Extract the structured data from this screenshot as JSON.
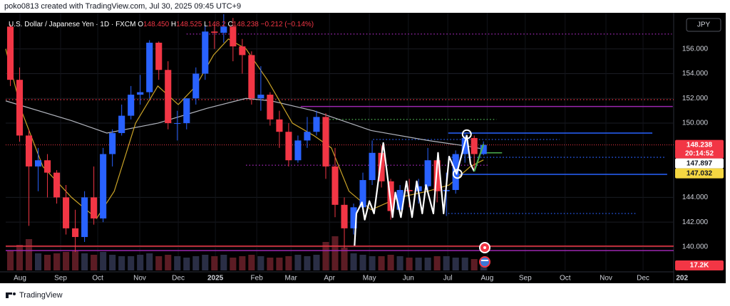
{
  "chart_data": {
    "type": "candlestick",
    "caption": "poko0813 created with TradingView.com, Jul 30, 2025 09:45 UTC+9",
    "legend": {
      "symbol": "U.S. Dollar / Japanese Yen · 1D · FXCM",
      "items": [
        [
          "O",
          "148.450"
        ],
        [
          "H",
          "148.525"
        ],
        [
          "L",
          "148.2"
        ],
        [
          "C",
          "148.238"
        ]
      ],
      "change": "−0.212 (−0.14%)"
    },
    "currency": "JPY",
    "countdown": "20:14:52",
    "footer": "TradingView",
    "up_color": "#2962ff",
    "down_color": "#f23645",
    "x": [
      0,
      1,
      2,
      3,
      4,
      5,
      6,
      7,
      8,
      9,
      10,
      11,
      12,
      13,
      14,
      15,
      16,
      17,
      18,
      19,
      20,
      21,
      22,
      23,
      24,
      25,
      26,
      27,
      28,
      29,
      30,
      31,
      32,
      33,
      34,
      35,
      36,
      37,
      38,
      39,
      40,
      41,
      42,
      43,
      44,
      45,
      46,
      47,
      48,
      49,
      50,
      51
    ],
    "open": [
      157.8,
      153.5,
      149.0,
      146.5,
      147.0,
      146.0,
      144.0,
      141.5,
      140.8,
      144.0,
      142.3,
      147.5,
      149.2,
      150.6,
      152.3,
      152.5,
      156.5,
      154.3,
      150.0,
      150.0,
      152.0,
      154.0,
      157.4,
      157.3,
      157.8,
      156.2,
      155.5,
      152.0,
      152.3,
      150.3,
      149.3,
      147.0,
      148.6,
      149.3,
      150.5,
      146.5,
      143.4,
      141.5,
      143.2,
      145.4,
      147.6,
      145.3,
      143.0,
      144.6,
      144.5,
      144.9,
      147.0,
      144.5,
      144.6,
      147.5,
      148.8,
      147.5
    ],
    "high": [
      158.0,
      154.5,
      149.5,
      148.0,
      147.5,
      146.2,
      145.0,
      143.0,
      144.5,
      146.5,
      148.0,
      149.5,
      151.5,
      153.0,
      153.9,
      156.7,
      156.6,
      155.0,
      151.0,
      152.0,
      154.5,
      157.9,
      158.0,
      158.8,
      158.5,
      156.8,
      155.8,
      154.6,
      152.5,
      151.0,
      150.0,
      149.0,
      150.5,
      151.0,
      150.8,
      148.0,
      144.0,
      143.5,
      146.0,
      148.6,
      148.2,
      145.5,
      145.0,
      145.5,
      145.5,
      148.0,
      147.0,
      146.0,
      147.8,
      149.2,
      149.0,
      148.525
    ],
    "low": [
      153.0,
      148.5,
      141.7,
      144.5,
      144.0,
      143.5,
      141.0,
      139.6,
      140.4,
      141.8,
      142.0,
      146.5,
      149.0,
      150.3,
      151.5,
      152.0,
      153.5,
      149.5,
      148.6,
      149.5,
      151.5,
      153.5,
      156.0,
      156.5,
      155.0,
      154.0,
      151.5,
      151.0,
      149.8,
      148.0,
      146.5,
      146.8,
      148.0,
      149.0,
      145.5,
      142.4,
      139.9,
      141.0,
      142.8,
      145.0,
      144.8,
      142.2,
      142.8,
      143.2,
      143.5,
      144.6,
      143.6,
      142.5,
      144.3,
      146.8,
      146.3,
      147.4
    ],
    "close": [
      153.5,
      149.0,
      146.5,
      147.0,
      146.0,
      144.0,
      141.5,
      140.8,
      144.0,
      142.3,
      147.5,
      149.2,
      150.6,
      152.3,
      152.5,
      156.5,
      154.3,
      150.0,
      150.0,
      152.0,
      154.0,
      157.4,
      157.3,
      157.8,
      156.2,
      155.5,
      152.0,
      152.3,
      150.3,
      149.3,
      147.0,
      148.6,
      149.3,
      150.5,
      146.5,
      143.4,
      141.5,
      143.2,
      145.4,
      147.6,
      145.3,
      142.9,
      144.6,
      144.5,
      144.9,
      147.0,
      144.5,
      144.6,
      147.5,
      148.8,
      147.5,
      148.238
    ],
    "xlim": [
      -0.5,
      71.5
    ],
    "ylim": [
      138.1,
      158.8
    ],
    "xticks": [
      {
        "value": 1.04,
        "label": "Aug"
      },
      {
        "value": 5.42,
        "label": "Sep"
      },
      {
        "value": 9.42,
        "label": "Oct"
      },
      {
        "value": 13.95,
        "label": "Nov"
      },
      {
        "value": 18.1,
        "label": "Dec"
      },
      {
        "value": 22.1,
        "label": "2025"
      },
      {
        "value": 26.56,
        "label": "Feb"
      },
      {
        "value": 30.25,
        "label": "Mar"
      },
      {
        "value": 34.4,
        "label": "Apr"
      },
      {
        "value": 38.7,
        "label": "May"
      },
      {
        "value": 42.9,
        "label": "Jun"
      },
      {
        "value": 47.15,
        "label": "Jul"
      },
      {
        "value": 51.4,
        "label": "Aug"
      },
      {
        "value": 55.5,
        "label": "Sep"
      },
      {
        "value": 59.8,
        "label": "Oct"
      },
      {
        "value": 64.2,
        "label": "Nov"
      },
      {
        "value": 68.2,
        "label": "Dec"
      },
      {
        "value": 72.4,
        "label": "202"
      }
    ],
    "yticks": [
      {
        "value": 140,
        "label": "140.000"
      },
      {
        "value": 142,
        "label": "142.000"
      },
      {
        "value": 144,
        "label": "144.000"
      },
      {
        "value": 150,
        "label": "150.000"
      },
      {
        "value": 152,
        "label": "152.000"
      },
      {
        "value": 154,
        "label": "154.000"
      },
      {
        "value": 156,
        "label": "156.000"
      }
    ],
    "grid": true,
    "moving_averages": [
      {
        "color": "#b2b5be",
        "label_bg": "#ffffff",
        "x": [
          -0.5,
          6.6,
          10.4,
          15.9,
          21.2,
          25.4,
          28.1,
          32.7,
          38.9,
          45.0,
          49.6,
          51.0
        ],
        "values": [
          151.8,
          150.2,
          149.2,
          150.0,
          151.2,
          152.0,
          151.8,
          151.0,
          149.4,
          148.6,
          148.1,
          147.897
        ]
      },
      {
        "color": "#c9a227",
        "label_bg": "#f5d742",
        "x": [
          -0.5,
          1.2,
          3.5,
          6.6,
          9.3,
          11.2,
          13.5,
          15.9,
          18.1,
          20.0,
          21.9,
          23.5,
          25.4,
          27.7,
          30.4,
          32.7,
          34.6,
          36.5,
          38.9,
          41.9,
          45.0,
          47.3,
          49.6,
          51.0
        ],
        "values": [
          156.0,
          151.0,
          146.5,
          144.0,
          142.3,
          144.5,
          150.0,
          153.0,
          151.5,
          153.0,
          155.5,
          156.8,
          156.0,
          153.5,
          150.0,
          149.0,
          148.0,
          144.5,
          143.0,
          144.0,
          144.5,
          145.0,
          146.5,
          147.032
        ]
      }
    ],
    "volume": {
      "up_color": "#2a2e45",
      "down_color": "#5c1c24",
      "vlim": [
        0,
        200
      ],
      "values": [
        70,
        90,
        110,
        60,
        55,
        60,
        65,
        70,
        60,
        55,
        65,
        55,
        50,
        50,
        55,
        60,
        50,
        55,
        50,
        45,
        50,
        55,
        50,
        55,
        45,
        50,
        55,
        50,
        45,
        45,
        50,
        55,
        50,
        55,
        100,
        120,
        80,
        60,
        55,
        50,
        50,
        55,
        50,
        45,
        45,
        45,
        50,
        50,
        45,
        45,
        40,
        17.2
      ],
      "last_label": "17.2K",
      "label_bg": "#f23645"
    },
    "levels": [
      {
        "value": 151.9,
        "from": -0.5,
        "to": 71.5,
        "color": "#f23645",
        "style": "dotted"
      },
      {
        "value": 157.2,
        "from": 19.0,
        "to": 71.3,
        "color": "#9c27b0",
        "style": "dotted"
      },
      {
        "value": 151.35,
        "from": 31.3,
        "to": 71.4,
        "color": "#9c27b0",
        "style": "solid"
      },
      {
        "value": 150.3,
        "from": 34.4,
        "to": 52.4,
        "color": "#4caf50",
        "style": "dotted"
      },
      {
        "value": 148.68,
        "from": 39.1,
        "to": 59.2,
        "color": "#2962ff",
        "style": "dotted"
      },
      {
        "value": 149.2,
        "from": 47.2,
        "to": 69.2,
        "color": "#2962ff",
        "style": "solid"
      },
      {
        "value": 147.24,
        "from": 47.2,
        "to": 70.5,
        "color": "#2962ff",
        "style": "dotted"
      },
      {
        "value": 146.6,
        "from": 25.4,
        "to": 51.5,
        "color": "#9c27b0",
        "style": "dotted"
      },
      {
        "value": 145.86,
        "from": 48.3,
        "to": 70.8,
        "color": "#2962ff",
        "style": "solid"
      },
      {
        "value": 142.7,
        "from": 47.2,
        "to": 67.5,
        "color": "#2962ff",
        "style": "dotted"
      },
      {
        "value": 140.06,
        "from": -0.5,
        "to": 71.5,
        "color": "#f23645",
        "style": "solid"
      },
      {
        "value": 139.7,
        "from": -0.5,
        "to": 71.5,
        "color": "#9c27b0",
        "style": "solid"
      },
      {
        "value": 147.6,
        "from": 51.0,
        "to": 53.0,
        "color": "#4caf50",
        "style": "solid"
      }
    ],
    "drawings": [
      {
        "color": "#ffffff",
        "x": [
          37.1,
          37.3,
          37.9,
          38.2,
          38.7,
          39.2,
          40.2,
          41.2,
          41.5,
          42.1,
          42.7,
          43.3,
          43.8,
          44.4,
          44.8,
          45.6,
          46.1,
          46.7,
          47.3,
          48.1,
          48.7,
          49.2,
          49.6,
          50.0
        ],
        "values": [
          140.1,
          142.7,
          143.6,
          142.2,
          143.7,
          142.7,
          148.4,
          142.4,
          144.4,
          142.4,
          145.3,
          142.4,
          145.3,
          142.7,
          145.0,
          142.7,
          147.6,
          142.7,
          147.3,
          145.9,
          147.6,
          149.0,
          146.7,
          146.1
        ]
      },
      {
        "color": "#4caf50",
        "x": [
          50.0,
          51.0
        ],
        "values": [
          146.1,
          148.3
        ]
      }
    ],
    "circles": {
      "color": "#ffffff",
      "x": [
        49.2,
        48.2
      ],
      "values": [
        149.1,
        145.9
      ]
    }
  }
}
